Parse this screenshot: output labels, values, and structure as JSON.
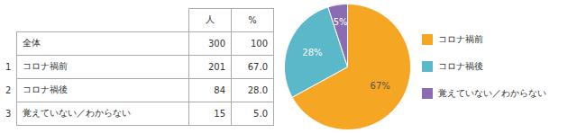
{
  "chart_data": [
    {
      "type": "table",
      "categories": [
        "全体",
        "コロナ禍前",
        "コロナ禍後",
        "覚えていない／わからない"
      ],
      "row_numbers": [
        null,
        "1",
        "2",
        "3"
      ],
      "series": [
        {
          "name": "人",
          "values": [
            300,
            201,
            84,
            15
          ]
        },
        {
          "name": "%",
          "values": [
            100,
            67.0,
            28.0,
            5.0
          ],
          "value_labels": [
            "100",
            "67.0",
            "28.0",
            "5.0"
          ]
        }
      ]
    },
    {
      "type": "pie",
      "categories": [
        "コロナ禍前",
        "コロナ禍後",
        "覚えていない／わからない"
      ],
      "values": [
        67,
        28,
        5
      ],
      "value_labels": [
        "67%",
        "28%",
        "5%"
      ],
      "colors": [
        "#F5A623",
        "#5BB8C8",
        "#8B6BB1"
      ],
      "data_labels": true,
      "legend": "right"
    }
  ]
}
